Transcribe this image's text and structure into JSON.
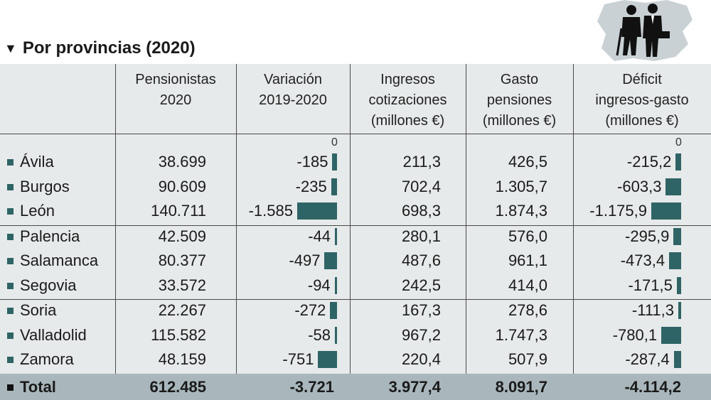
{
  "title": "Por provincias (2020)",
  "headers": {
    "pensionistas": "Pensionistas\n2020",
    "variacion": "Variación\n2019-2020",
    "ingresos": "Ingresos\ncotizaciones\n(millones €)",
    "gasto": "Gasto\npensiones\n(millones €)",
    "deficit": "Déficit\ningresos-gasto\n(millones €)"
  },
  "zero_label": "0",
  "rows": [
    {
      "provincia": "Ávila",
      "pensionistas": "38.699",
      "variacion": "-185",
      "ingresos": "211,3",
      "gasto": "426,5",
      "deficit": "-215,2"
    },
    {
      "provincia": "Burgos",
      "pensionistas": "90.609",
      "variacion": "-235",
      "ingresos": "702,4",
      "gasto": "1.305,7",
      "deficit": "-603,3"
    },
    {
      "provincia": "León",
      "pensionistas": "140.711",
      "variacion": "-1.585",
      "ingresos": "698,3",
      "gasto": "1.874,3",
      "deficit": "-1.175,9"
    },
    {
      "provincia": "Palencia",
      "pensionistas": "42.509",
      "variacion": "-44",
      "ingresos": "280,1",
      "gasto": "576,0",
      "deficit": "-295,9"
    },
    {
      "provincia": "Salamanca",
      "pensionistas": "80.377",
      "variacion": "-497",
      "ingresos": "487,6",
      "gasto": "961,1",
      "deficit": "-473,4"
    },
    {
      "provincia": "Segovia",
      "pensionistas": "33.572",
      "variacion": "-94",
      "ingresos": "242,5",
      "gasto": "414,0",
      "deficit": "-171,5"
    },
    {
      "provincia": "Soria",
      "pensionistas": "22.267",
      "variacion": "-272",
      "ingresos": "167,3",
      "gasto": "278,6",
      "deficit": "-111,3"
    },
    {
      "provincia": "Valladolid",
      "pensionistas": "115.582",
      "variacion": "-58",
      "ingresos": "967,2",
      "gasto": "1.747,3",
      "deficit": "-780,1"
    },
    {
      "provincia": "Zamora",
      "pensionistas": "48.159",
      "variacion": "-751",
      "ingresos": "220,4",
      "gasto": "507,9",
      "deficit": "-287,4"
    }
  ],
  "total": {
    "provincia": "Total",
    "pensionistas": "612.485",
    "variacion": "-3.721",
    "ingresos": "3.977,4",
    "gasto": "8.091,7",
    "deficit": "-4.114,2"
  },
  "colors": {
    "bar": "#2f6466",
    "table_bg": "#e7eaeb",
    "total_bg": "#a9b7bc"
  },
  "chart_data": {
    "type": "table",
    "title": "Por provincias (2020)",
    "columns": [
      "Pensionistas 2020",
      "Variación 2019-2020",
      "Ingresos cotizaciones (millones €)",
      "Gasto pensiones (millones €)",
      "Déficit ingresos-gasto (millones €)"
    ],
    "categories": [
      "Ávila",
      "Burgos",
      "León",
      "Palencia",
      "Salamanca",
      "Segovia",
      "Soria",
      "Valladolid",
      "Zamora"
    ],
    "series": [
      {
        "name": "Pensionistas 2020",
        "values": [
          38699,
          90609,
          140711,
          42509,
          80377,
          33572,
          22267,
          115582,
          48159
        ]
      },
      {
        "name": "Variación 2019-2020",
        "values": [
          -185,
          -235,
          -1585,
          -44,
          -497,
          -94,
          -272,
          -58,
          -751
        ]
      },
      {
        "name": "Ingresos cotizaciones (millones €)",
        "values": [
          211.3,
          702.4,
          698.3,
          280.1,
          487.6,
          242.5,
          167.3,
          967.2,
          220.4
        ]
      },
      {
        "name": "Gasto pensiones (millones €)",
        "values": [
          426.5,
          1305.7,
          1874.3,
          576.0,
          961.1,
          414.0,
          278.6,
          1747.3,
          507.9
        ]
      },
      {
        "name": "Déficit ingresos-gasto (millones €)",
        "values": [
          -215.2,
          -603.3,
          -1175.9,
          -295.9,
          -473.4,
          -171.5,
          -111.3,
          -780.1,
          -287.4
        ]
      }
    ],
    "totals": [
      612485,
      -3721,
      3977.4,
      8091.7,
      -4114.2
    ]
  }
}
